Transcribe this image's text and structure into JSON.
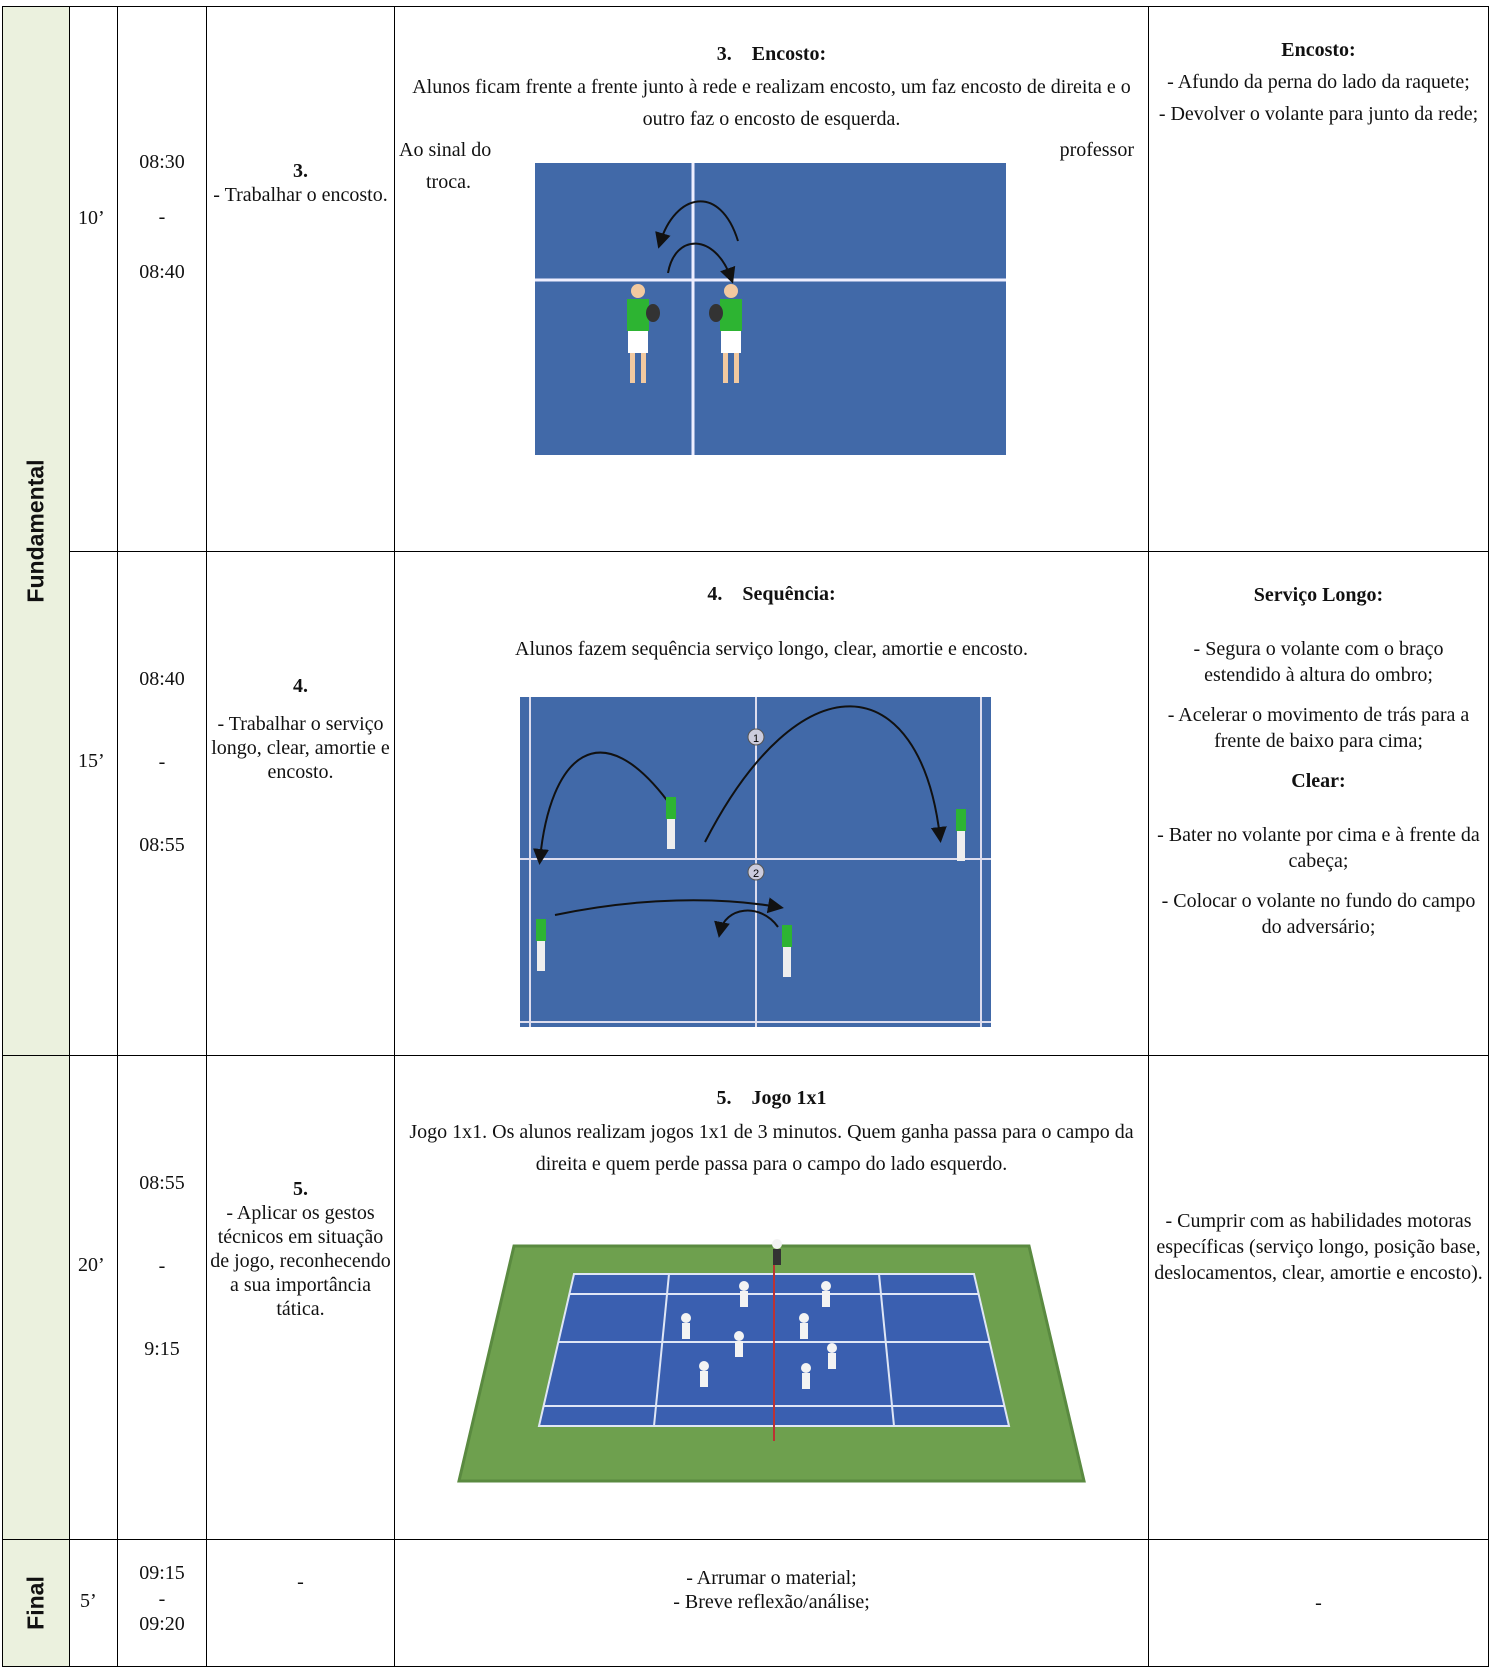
{
  "rows": [
    {
      "phase": "Fundamental",
      "duration": "10’",
      "time": [
        "08:30",
        "-",
        "08:40"
      ],
      "objective": [
        "3.",
        "- Trabalhar o encosto."
      ],
      "description": {
        "title": "3.    Encosto:",
        "text": "Alunos ficam frente a frente junto à rede e realizam encosto, um faz encosto de direita e o outro faz o encosto de esquerda.",
        "wrap": [
          "Ao sinal do",
          "professor",
          "troca."
        ]
      },
      "criteria": [
        {
          "heading": "Encosto:",
          "items": [
            "- Afundo da perna do lado da raquete;",
            "- Devolver o volante para junto da rede;"
          ]
        }
      ]
    },
    {
      "duration": "15’",
      "time": [
        "08:40",
        "-",
        "08:55"
      ],
      "objective": [
        "4.",
        "- Trabalhar o serviço longo, clear, amortie e encosto."
      ],
      "description": {
        "title": "4.    Sequência:",
        "text": "Alunos fazem sequência serviço longo, clear, amortie e encosto.",
        "markers": [
          "1",
          "2"
        ]
      },
      "criteria": [
        {
          "heading": "Serviço Longo:",
          "items": [
            "- Segura o volante com o braço estendido à altura do ombro;",
            "- Acelerar o movimento de trás para a frente de baixo para cima;"
          ]
        },
        {
          "heading": "Clear:",
          "items": [
            "- Bater no volante por cima e à frente da cabeça;",
            "- Colocar o volante no fundo do campo do adversário;"
          ]
        }
      ]
    },
    {
      "duration": "20’",
      "time": [
        "08:55",
        "-",
        "9:15"
      ],
      "objective": [
        "5.",
        "- Aplicar os gestos técnicos em situação de jogo, reconhecendo a sua importância tática."
      ],
      "description": {
        "title": "5.    Jogo 1x1",
        "text": "Jogo 1x1. Os alunos realizam jogos 1x1 de 3 minutos. Quem ganha passa para o campo da direita e quem perde passa para o campo do lado esquerdo."
      },
      "criteria": "- Cumprir com as habilidades motoras específicas (serviço longo, posição base, deslocamentos, clear, amortie e encosto)."
    },
    {
      "phase": "Final",
      "duration": "5’",
      "time": [
        "09:15",
        "-",
        "09:20"
      ],
      "objective": "-",
      "description": [
        "- Arrumar o material;",
        "- Breve reflexão/análise;"
      ],
      "criteria": "-"
    }
  ]
}
